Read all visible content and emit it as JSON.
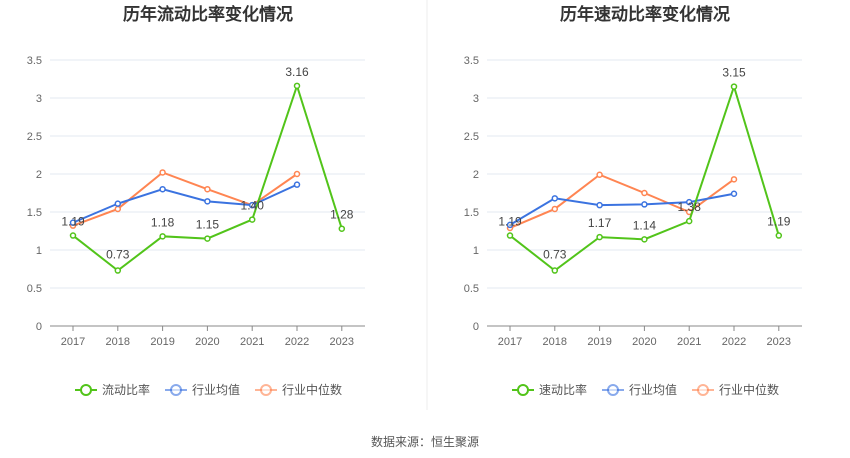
{
  "chart_data": [
    {
      "type": "line",
      "title": "历年流动比率变化情况",
      "categories": [
        "2017",
        "2018",
        "2019",
        "2020",
        "2021",
        "2022",
        "2023"
      ],
      "ylim": [
        0,
        3.5
      ],
      "yticks": [
        "0",
        "0.5",
        "1",
        "1.5",
        "2",
        "2.5",
        "3",
        "3.5"
      ],
      "grid": true,
      "legend": "bottom",
      "series": [
        {
          "name": "流动比率",
          "color": "#52c41a",
          "values": [
            1.19,
            0.73,
            1.18,
            1.15,
            1.4,
            3.16,
            1.28
          ],
          "labels": [
            "1.19",
            "0.73",
            "1.18",
            "1.15",
            "1.40",
            "3.16",
            "1.28"
          ]
        },
        {
          "name": "行业均值",
          "color": "#3b73e0",
          "values": [
            1.36,
            1.61,
            1.8,
            1.64,
            1.59,
            1.86,
            null
          ]
        },
        {
          "name": "行业中位数",
          "color": "#ff8552",
          "values": [
            1.32,
            1.54,
            2.02,
            1.8,
            1.59,
            2.0,
            null
          ]
        }
      ]
    },
    {
      "type": "line",
      "title": "历年速动比率变化情况",
      "categories": [
        "2017",
        "2018",
        "2019",
        "2020",
        "2021",
        "2022",
        "2023"
      ],
      "ylim": [
        0,
        3.5
      ],
      "yticks": [
        "0",
        "0.5",
        "1",
        "1.5",
        "2",
        "2.5",
        "3",
        "3.5"
      ],
      "grid": true,
      "legend": "bottom",
      "series": [
        {
          "name": "速动比率",
          "color": "#52c41a",
          "values": [
            1.19,
            0.73,
            1.17,
            1.14,
            1.38,
            3.15,
            1.19
          ],
          "labels": [
            "1.19",
            "0.73",
            "1.17",
            "1.14",
            "1.38",
            "3.15",
            "1.19"
          ]
        },
        {
          "name": "行业均值",
          "color": "#3b73e0",
          "values": [
            1.33,
            1.68,
            1.59,
            1.6,
            1.63,
            1.74,
            null
          ]
        },
        {
          "name": "行业中位数",
          "color": "#ff8552",
          "values": [
            1.29,
            1.54,
            1.99,
            1.75,
            1.5,
            1.93,
            null
          ]
        }
      ]
    }
  ],
  "source": "数据来源：恒生聚源"
}
